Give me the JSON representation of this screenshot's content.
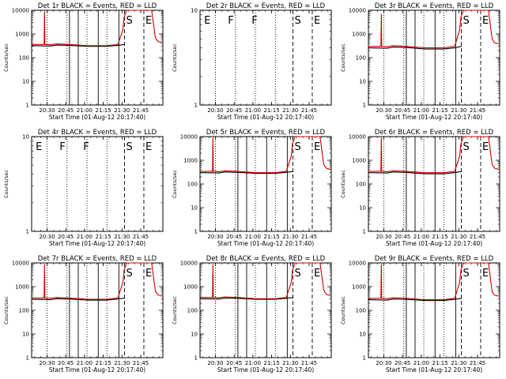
{
  "chart_data": [
    {
      "type": "line",
      "title": "Det 1r BLACK = Events, RED = LLD",
      "ylabel": "Counts/sec",
      "xlabel": "Start Time (01-Aug-12 20:17:40)",
      "x_tick_labels": [
        "20:30",
        "20:45",
        "21:00",
        "21:15",
        "21:30",
        "21:45"
      ],
      "y_tick_labels": [
        "1",
        "10",
        "100",
        "1000",
        "10000"
      ],
      "ylim": [
        1,
        10000
      ],
      "yscale": "log",
      "x_unit": "minutes after 20:17:40",
      "solid_lines_x": [
        30.3,
        37.3,
        53.3,
        69.8
      ],
      "dotted_lines_x": [
        12.3,
        28.3,
        44.3,
        60.3
      ],
      "dashed_lines_x": [
        74.3,
        89.8
      ],
      "markers": [
        {
          "label": "S",
          "x": 74.3
        },
        {
          "label": "E",
          "x": 89.8
        }
      ],
      "series": [
        {
          "name": "Events",
          "color": "#000000",
          "x": [
            0,
            15,
            20,
            30,
            45,
            60,
            69,
            74.5
          ],
          "y": [
            320,
            310,
            340,
            330,
            300,
            300,
            330,
            360
          ]
        },
        {
          "name": "LLD",
          "color": "#d00000",
          "x": [
            0,
            10,
            10.3,
            10.6,
            12,
            15,
            20,
            30,
            45,
            60,
            69,
            73,
            74,
            76,
            79,
            84,
            88,
            92,
            96,
            99,
            101,
            104
          ],
          "y": [
            360,
            360,
            9000,
            360,
            360,
            350,
            380,
            360,
            320,
            320,
            360,
            1500,
            5000,
            10000,
            10000,
            10000,
            10000,
            10000,
            10000,
            700,
            480,
            440
          ]
        }
      ]
    },
    {
      "type": "line",
      "title": "Det 2r BLACK = Events, RED = LLD",
      "ylabel": "Counts/sec",
      "xlabel": "Start Time (01-Aug-12 20:17:40)",
      "x_tick_labels": [
        "20:30",
        "20:45",
        "21:00",
        "21:15",
        "21:30",
        "21:45"
      ],
      "y_tick_labels": [
        "1",
        "10"
      ],
      "ylim": [
        1,
        10
      ],
      "yscale": "log",
      "x_unit": "minutes after 20:17:40",
      "solid_lines_x": [],
      "dotted_lines_x": [
        12.3,
        28.3,
        44.3,
        60.3
      ],
      "dashed_lines_x": [
        74.3,
        89.8
      ],
      "markers": [
        {
          "label": "E",
          "x": 2
        },
        {
          "label": "F",
          "x": 21
        },
        {
          "label": "F",
          "x": 40
        },
        {
          "label": "S",
          "x": 74.3
        },
        {
          "label": "E",
          "x": 89.8
        }
      ],
      "series": []
    },
    {
      "type": "line",
      "title": "Det 3r BLACK = Events, RED = LLD",
      "ylabel": "Counts/sec",
      "xlabel": "Start Time (01-Aug-12 20:17:40)",
      "x_tick_labels": [
        "20:30",
        "20:45",
        "21:00",
        "21:15",
        "21:30",
        "21:45"
      ],
      "y_tick_labels": [
        "1",
        "10",
        "100",
        "1000",
        "10000"
      ],
      "ylim": [
        1,
        10000
      ],
      "yscale": "log",
      "x_unit": "minutes after 20:17:40",
      "solid_lines_x": [
        30.3,
        37.3,
        53.3,
        69.8
      ],
      "dotted_lines_x": [
        12.3,
        28.3,
        44.3,
        60.3
      ],
      "dashed_lines_x": [
        74.3,
        89.8
      ],
      "markers": [
        {
          "label": "S",
          "x": 74.3
        },
        {
          "label": "E",
          "x": 89.8
        }
      ],
      "series": [
        {
          "name": "Events",
          "color": "#000000",
          "x": [
            0,
            15,
            20,
            30,
            45,
            60,
            69,
            74.5
          ],
          "y": [
            260,
            250,
            280,
            270,
            230,
            230,
            260,
            300
          ]
        },
        {
          "name": "LLD",
          "color": "#d00000",
          "x": [
            0,
            10,
            10.3,
            10.6,
            12,
            15,
            20,
            30,
            45,
            60,
            69,
            73,
            74,
            76,
            79,
            84,
            88,
            92,
            96,
            99,
            101,
            104
          ],
          "y": [
            300,
            300,
            7000,
            300,
            300,
            290,
            320,
            300,
            260,
            260,
            300,
            1500,
            5000,
            10000,
            10000,
            10000,
            10000,
            10000,
            10000,
            600,
            420,
            390
          ]
        }
      ]
    },
    {
      "type": "line",
      "title": "Det 4r BLACK = Events, RED = LLD",
      "ylabel": "Counts/sec",
      "xlabel": "Start Time (01-Aug-12 20:17:40)",
      "x_tick_labels": [
        "20:30",
        "20:45",
        "21:00",
        "21:15",
        "21:30",
        "21:45"
      ],
      "y_tick_labels": [
        "1",
        "10"
      ],
      "ylim": [
        1,
        10
      ],
      "yscale": "log",
      "x_unit": "minutes after 20:17:40",
      "solid_lines_x": [],
      "dotted_lines_x": [
        12.3,
        28.3,
        44.3,
        60.3
      ],
      "dashed_lines_x": [
        74.3,
        89.8
      ],
      "markers": [
        {
          "label": "E",
          "x": 2
        },
        {
          "label": "F",
          "x": 21
        },
        {
          "label": "F",
          "x": 40
        },
        {
          "label": "S",
          "x": 74.3
        },
        {
          "label": "E",
          "x": 89.8
        }
      ],
      "series": []
    },
    {
      "type": "line",
      "title": "Det 5r BLACK = Events, RED = LLD",
      "ylabel": "Counts/sec",
      "xlabel": "Start Time (01-Aug-12 20:17:40)",
      "x_tick_labels": [
        "20:30",
        "20:45",
        "21:00",
        "21:15",
        "21:30",
        "21:45"
      ],
      "y_tick_labels": [
        "1",
        "10",
        "100",
        "1000",
        "10000"
      ],
      "ylim": [
        1,
        10000
      ],
      "yscale": "log",
      "x_unit": "minutes after 20:17:40",
      "solid_lines_x": [
        30.3,
        37.3,
        53.3,
        69.8
      ],
      "dotted_lines_x": [
        12.3,
        28.3,
        44.3,
        60.3
      ],
      "dashed_lines_x": [
        74.3,
        89.8
      ],
      "markers": [
        {
          "label": "S",
          "x": 74.3
        },
        {
          "label": "E",
          "x": 89.8
        }
      ],
      "series": [
        {
          "name": "Events",
          "color": "#000000",
          "x": [
            0,
            15,
            20,
            30,
            45,
            60,
            69,
            74.5
          ],
          "y": [
            300,
            290,
            320,
            310,
            280,
            280,
            310,
            340
          ]
        },
        {
          "name": "LLD",
          "color": "#d00000",
          "x": [
            0,
            10,
            10.3,
            10.6,
            12,
            15,
            20,
            30,
            45,
            60,
            69,
            73,
            74,
            76,
            79,
            84,
            88,
            92,
            96,
            99,
            101,
            104
          ],
          "y": [
            340,
            340,
            9000,
            340,
            340,
            330,
            360,
            340,
            300,
            300,
            340,
            1500,
            5000,
            10000,
            10000,
            10000,
            10000,
            10000,
            10000,
            650,
            460,
            420
          ]
        }
      ]
    },
    {
      "type": "line",
      "title": "Det 6r BLACK = Events, RED = LLD",
      "ylabel": "Counts/sec",
      "xlabel": "Start Time (01-Aug-12 20:17:40)",
      "x_tick_labels": [
        "20:30",
        "20:45",
        "21:00",
        "21:15",
        "21:30",
        "21:45"
      ],
      "y_tick_labels": [
        "1",
        "10",
        "100",
        "1000",
        "10000"
      ],
      "ylim": [
        1,
        10000
      ],
      "yscale": "log",
      "x_unit": "minutes after 20:17:40",
      "solid_lines_x": [
        30.3,
        37.3,
        53.3,
        69.8
      ],
      "dotted_lines_x": [
        12.3,
        28.3,
        44.3,
        60.3
      ],
      "dashed_lines_x": [
        74.3,
        89.8
      ],
      "markers": [
        {
          "label": "S",
          "x": 74.3
        },
        {
          "label": "E",
          "x": 89.8
        }
      ],
      "series": [
        {
          "name": "Events",
          "color": "#000000",
          "x": [
            0,
            15,
            20,
            30,
            45,
            60,
            69,
            74.5
          ],
          "y": [
            300,
            290,
            320,
            310,
            270,
            270,
            300,
            340
          ]
        },
        {
          "name": "LLD",
          "color": "#d00000",
          "x": [
            0,
            10,
            10.3,
            10.6,
            12,
            15,
            20,
            30,
            45,
            60,
            69,
            73,
            74,
            76,
            79,
            84,
            88,
            92,
            96,
            99,
            101,
            104
          ],
          "y": [
            340,
            340,
            9000,
            340,
            340,
            330,
            360,
            340,
            300,
            300,
            340,
            1500,
            5000,
            10000,
            10000,
            10000,
            10000,
            10000,
            10000,
            650,
            460,
            420
          ]
        }
      ]
    },
    {
      "type": "line",
      "title": "Det 7r BLACK = Events, RED = LLD",
      "ylabel": "Counts/sec",
      "xlabel": "Start Time (01-Aug-12 20:17:40)",
      "x_tick_labels": [
        "20:30",
        "20:45",
        "21:00",
        "21:15",
        "21:30",
        "21:45"
      ],
      "y_tick_labels": [
        "1",
        "10",
        "100",
        "1000",
        "10000"
      ],
      "ylim": [
        1,
        10000
      ],
      "yscale": "log",
      "x_unit": "minutes after 20:17:40",
      "solid_lines_x": [
        30.3,
        37.3,
        53.3,
        69.8
      ],
      "dotted_lines_x": [
        12.3,
        28.3,
        44.3,
        60.3
      ],
      "dashed_lines_x": [
        74.3,
        89.8
      ],
      "markers": [
        {
          "label": "S",
          "x": 74.3
        },
        {
          "label": "E",
          "x": 89.8
        }
      ],
      "series": [
        {
          "name": "Events",
          "color": "#000000",
          "x": [
            0,
            15,
            20,
            30,
            45,
            60,
            69,
            74.5
          ],
          "y": [
            290,
            280,
            310,
            300,
            270,
            270,
            300,
            330
          ]
        },
        {
          "name": "LLD",
          "color": "#d00000",
          "x": [
            0,
            10,
            10.3,
            10.6,
            12,
            15,
            20,
            30,
            45,
            60,
            69,
            73,
            74,
            76,
            79,
            84,
            88,
            92,
            96,
            99,
            101,
            104
          ],
          "y": [
            330,
            330,
            9000,
            330,
            330,
            320,
            350,
            330,
            290,
            290,
            330,
            1500,
            5000,
            10000,
            10000,
            10000,
            10000,
            10000,
            10000,
            650,
            450,
            410
          ]
        }
      ]
    },
    {
      "type": "line",
      "title": "Det 8r BLACK = Events, RED = LLD",
      "ylabel": "Counts/sec",
      "xlabel": "Start Time (01-Aug-12 20:17:40)",
      "x_tick_labels": [
        "20:30",
        "20:45",
        "21:00",
        "21:15",
        "21:30",
        "21:45"
      ],
      "y_tick_labels": [
        "1",
        "10",
        "100",
        "1000",
        "10000"
      ],
      "ylim": [
        1,
        10000
      ],
      "yscale": "log",
      "x_unit": "minutes after 20:17:40",
      "solid_lines_x": [
        30.3,
        37.3,
        53.3,
        69.8
      ],
      "dotted_lines_x": [
        12.3,
        28.3,
        44.3,
        60.3
      ],
      "dashed_lines_x": [
        74.3,
        89.8
      ],
      "markers": [
        {
          "label": "S",
          "x": 74.3
        },
        {
          "label": "E",
          "x": 89.8
        }
      ],
      "series": [
        {
          "name": "Events",
          "color": "#000000",
          "x": [
            0,
            15,
            20,
            30,
            45,
            60,
            69,
            74.5
          ],
          "y": [
            310,
            300,
            330,
            320,
            290,
            290,
            320,
            350
          ]
        },
        {
          "name": "LLD",
          "color": "#d00000",
          "x": [
            0,
            10,
            10.3,
            10.6,
            12,
            15,
            20,
            30,
            45,
            60,
            69,
            73,
            74,
            76,
            79,
            84,
            88,
            92,
            96,
            99,
            101,
            104
          ],
          "y": [
            350,
            350,
            9000,
            350,
            350,
            340,
            370,
            350,
            310,
            310,
            350,
            1500,
            5000,
            10000,
            10000,
            10000,
            10000,
            10000,
            10000,
            700,
            470,
            430
          ]
        }
      ]
    },
    {
      "type": "line",
      "title": "Det 9r BLACK = Events, RED = LLD",
      "ylabel": "Counts/sec",
      "xlabel": "Start Time (01-Aug-12 20:17:40)",
      "x_tick_labels": [
        "20:30",
        "20:45",
        "21:00",
        "21:15",
        "21:30",
        "21:45"
      ],
      "y_tick_labels": [
        "1",
        "10",
        "100",
        "1000",
        "10000"
      ],
      "ylim": [
        1,
        10000
      ],
      "yscale": "log",
      "x_unit": "minutes after 20:17:40",
      "solid_lines_x": [
        30.3,
        37.3,
        53.3,
        69.8
      ],
      "dotted_lines_x": [
        12.3,
        28.3,
        44.3,
        60.3
      ],
      "dashed_lines_x": [
        74.3,
        89.8
      ],
      "markers": [
        {
          "label": "S",
          "x": 74.3
        },
        {
          "label": "E",
          "x": 89.8
        }
      ],
      "series": [
        {
          "name": "Events",
          "color": "#000000",
          "x": [
            0,
            15,
            20,
            30,
            45,
            60,
            69,
            74.5
          ],
          "y": [
            280,
            270,
            300,
            290,
            260,
            260,
            290,
            320
          ]
        },
        {
          "name": "LLD",
          "color": "#d00000",
          "x": [
            0,
            10,
            10.3,
            10.6,
            12,
            15,
            20,
            30,
            45,
            60,
            69,
            73,
            74,
            76,
            79,
            84,
            88,
            92,
            96,
            99,
            101,
            104
          ],
          "y": [
            320,
            320,
            9000,
            320,
            320,
            310,
            340,
            320,
            280,
            280,
            320,
            1500,
            5000,
            10000,
            10000,
            10000,
            10000,
            10000,
            10000,
            600,
            430,
            400
          ]
        }
      ]
    }
  ]
}
